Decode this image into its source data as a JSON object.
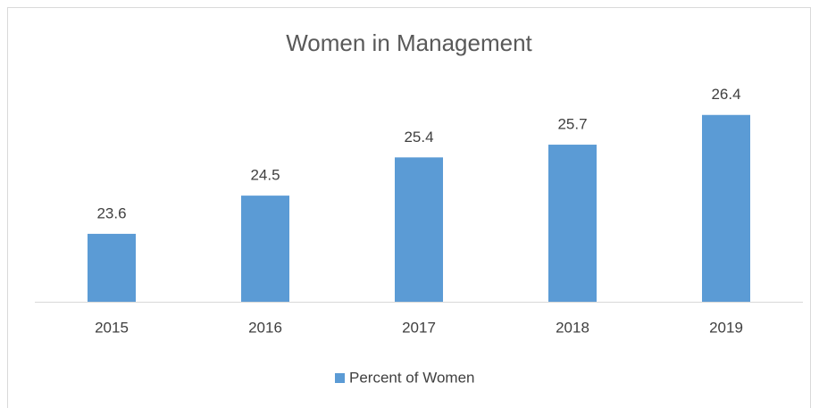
{
  "chart_data": {
    "type": "bar",
    "title": "Women in Management",
    "categories": [
      "2015",
      "2016",
      "2017",
      "2018",
      "2019"
    ],
    "series": [
      {
        "name": "Percent of Women",
        "color": "#5b9bd5",
        "values": [
          23.6,
          24.5,
          25.4,
          25.7,
          26.4
        ]
      }
    ],
    "ylim": [
      22,
      26.5
    ],
    "legend": "bottom"
  }
}
